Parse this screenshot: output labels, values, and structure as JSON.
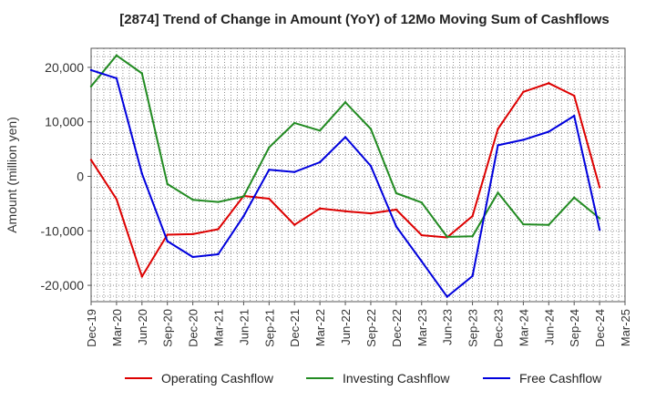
{
  "chart_data": {
    "type": "line",
    "title": "[2874]  Trend of Change in Amount (YoY) of 12Mo Moving Sum of Cashflows",
    "xlabel": "",
    "ylabel": "Amount (million yen)",
    "ylim": [
      -23000,
      23500
    ],
    "yticks": [
      20000,
      10000,
      0,
      -10000,
      -20000
    ],
    "ytick_labels": [
      "20,000",
      "10,000",
      "0",
      "-10,000",
      "-20,000"
    ],
    "categories": [
      "Dec-19",
      "Mar-20",
      "Jun-20",
      "Sep-20",
      "Dec-20",
      "Mar-21",
      "Jun-21",
      "Sep-21",
      "Dec-21",
      "Mar-22",
      "Jun-22",
      "Sep-22",
      "Dec-22",
      "Mar-23",
      "Jun-23",
      "Sep-23",
      "Dec-23",
      "Mar-24",
      "Jun-24",
      "Sep-24",
      "Dec-24",
      "Mar-25"
    ],
    "legend_position": "bottom",
    "series": [
      {
        "name": "Operating Cashflow",
        "color": "#dd0000",
        "values": [
          3000,
          -4200,
          -18400,
          -10700,
          -10600,
          -9700,
          -3600,
          -4100,
          -8900,
          -5900,
          -6400,
          -6800,
          -6100,
          -10800,
          -11200,
          -7300,
          8700,
          15500,
          17100,
          14800,
          -2000,
          null
        ]
      },
      {
        "name": "Investing Cashflow",
        "color": "#228b22",
        "values": [
          16500,
          22200,
          18900,
          -1400,
          -4300,
          -4700,
          -3700,
          5300,
          9800,
          8400,
          13600,
          8700,
          -3100,
          -4800,
          -11100,
          -11000,
          -3000,
          -8800,
          -8900,
          -3900,
          -7700,
          null
        ]
      },
      {
        "name": "Free Cashflow",
        "color": "#0000dd",
        "values": [
          19500,
          18000,
          500,
          -11900,
          -14800,
          -14300,
          -7300,
          1200,
          800,
          2600,
          7200,
          1900,
          -9200,
          -15600,
          -22100,
          -18300,
          5700,
          6700,
          8200,
          11100,
          -9800,
          null
        ]
      }
    ]
  }
}
